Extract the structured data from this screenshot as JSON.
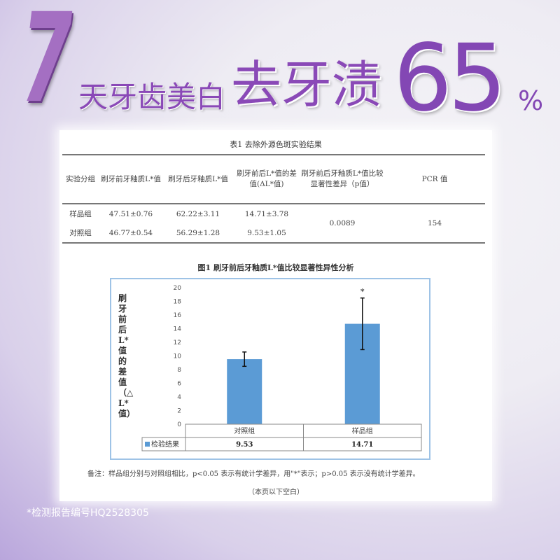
{
  "hero": {
    "digit": "7",
    "line1": "天牙齿美白",
    "line2": "去牙渍",
    "number": "65",
    "percent": "%"
  },
  "table": {
    "title": "表1 去除外源色斑实验结果",
    "headers": [
      "实验分组",
      "刷牙前牙釉质L*值",
      "刷牙后牙釉质L*值",
      "刷牙前后L*值的差值(ΔL*值)",
      "刷牙前后牙釉质L*值比较显著性差异（p值）",
      "PCR 值"
    ],
    "rows": [
      [
        "样品组",
        "47.51±0.76",
        "62.22±3.11",
        "14.71±3.78"
      ],
      [
        "对照组",
        "46.77±0.54",
        "56.29±1.28",
        "9.53±1.05"
      ]
    ],
    "p_value": "0.0089",
    "pcr": "154"
  },
  "chart_data": {
    "type": "bar",
    "title": "图1 刷牙前后牙釉质L*值比较显著性异性分析",
    "ylabel": "刷牙前后L*值的差值（△L*值）",
    "ylim": [
      0,
      20
    ],
    "yticks": [
      0,
      2,
      4,
      6,
      8,
      10,
      12,
      14,
      16,
      18,
      20
    ],
    "categories": [
      "对照组",
      "样品组"
    ],
    "series": [
      {
        "name": "检验结果",
        "values": [
          9.53,
          14.71
        ],
        "errors": [
          1.05,
          3.78
        ],
        "labels": [
          "9.53",
          "14.71"
        ]
      }
    ],
    "annotations": [
      {
        "category": "样品组",
        "text": "*"
      }
    ],
    "bar_color": "#5b9bd5",
    "grid": false,
    "legend": "bottom-left-data-table"
  },
  "note": "备注：样品组分别与对照组相比，p<0.05 表示有统计学差异，用\"*\"表示；p>0.05 表示没有统计学差异。",
  "note2": "（本页以下空白）",
  "footnote": "*检测报告编号HQ2528305"
}
